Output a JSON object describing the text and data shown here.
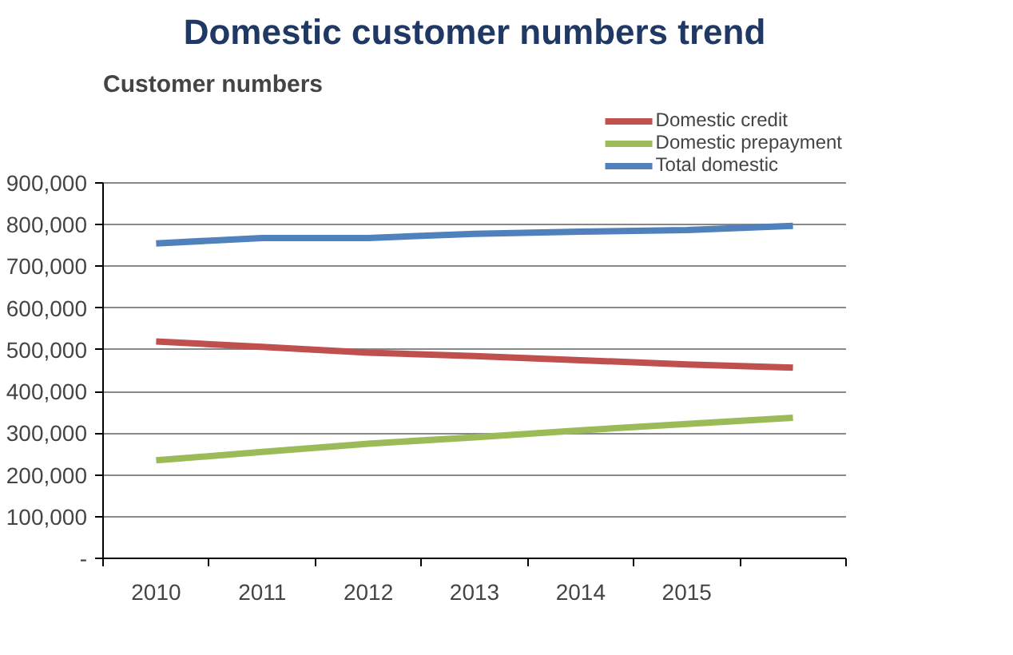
{
  "chart_data": {
    "type": "line",
    "title": "Domestic customer numbers trend",
    "ylabel": "Customer numbers",
    "categories": [
      "2010",
      "2011",
      "2012",
      "2013",
      "2014",
      "2015",
      null
    ],
    "series": [
      {
        "name": "Domestic credit",
        "color": "#c0504d",
        "values": [
          520000,
          507000,
          493000,
          485000,
          475000,
          465000,
          457000
        ]
      },
      {
        "name": "Domestic prepayment",
        "color": "#9bbb59",
        "values": [
          235000,
          255000,
          275000,
          290000,
          307000,
          322000,
          337000
        ]
      },
      {
        "name": "Total domestic",
        "color": "#4f81bd",
        "values": [
          755000,
          768000,
          768000,
          778000,
          783000,
          787000,
          797000
        ]
      }
    ],
    "ylim": [
      0,
      900000
    ],
    "yticks": [
      {
        "value": 0,
        "label": "-"
      },
      {
        "value": 100000,
        "label": "100,000"
      },
      {
        "value": 200000,
        "label": "200,000"
      },
      {
        "value": 300000,
        "label": "300,000"
      },
      {
        "value": 400000,
        "label": "400,000"
      },
      {
        "value": 500000,
        "label": "500,000"
      },
      {
        "value": 600000,
        "label": "600,000"
      },
      {
        "value": 700000,
        "label": "700,000"
      },
      {
        "value": 800000,
        "label": "800,000"
      },
      {
        "value": 900000,
        "label": "900,000"
      }
    ],
    "grid": "y",
    "legend": "top right",
    "marker": "none",
    "line_style": "solid"
  }
}
